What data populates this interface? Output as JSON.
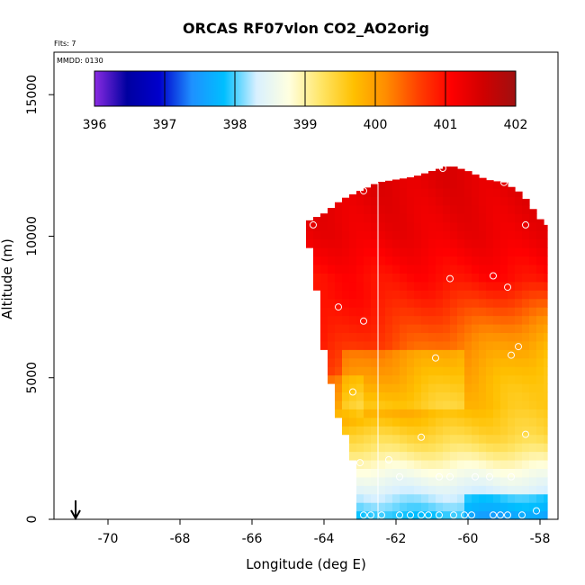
{
  "chart_data": {
    "type": "heatmap",
    "title": "ORCAS RF07vlon CO2_AO2orig",
    "annotations": {
      "flights": "Flts: 7",
      "date": "MMDD: 0130"
    },
    "xlabel": "Longitude (deg E)",
    "ylabel": "Altitude (m)",
    "xlim": [
      -71.5,
      -57.5
    ],
    "ylim": [
      0,
      16500
    ],
    "xticks": [
      -70,
      -68,
      -66,
      -64,
      -62,
      -60,
      -58
    ],
    "yticks": [
      0,
      5000,
      10000,
      15000
    ],
    "colorbar": {
      "range": [
        396,
        402
      ],
      "ticks": [
        396,
        397,
        398,
        399,
        400,
        401,
        402
      ],
      "colors": [
        "#8a2be2",
        "#0000a0",
        "#0000cc",
        "#1e90ff",
        "#00bfff",
        "#d8f0ff",
        "#ffffe0",
        "#ffe566",
        "#ffc000",
        "#ff8c00",
        "#ff4000",
        "#ff0000",
        "#d00000",
        "#a01010"
      ]
    },
    "vertical_line_lon": -62.5,
    "arrow_lon": -70.9,
    "domain": {
      "lon_left": -64.5,
      "lon_right": -57.8,
      "top_profile": [
        [
          -64.5,
          10500
        ],
        [
          -64.0,
          10800
        ],
        [
          -63.5,
          11300
        ],
        [
          -63.0,
          11600
        ],
        [
          -62.5,
          11900
        ],
        [
          -62.0,
          12000
        ],
        [
          -61.5,
          12100
        ],
        [
          -61.0,
          12300
        ],
        [
          -60.5,
          12500
        ],
        [
          -60.0,
          12300
        ],
        [
          -59.5,
          12000
        ],
        [
          -59.0,
          11900
        ],
        [
          -58.5,
          11500
        ],
        [
          -58.0,
          10600
        ],
        [
          -57.8,
          10400
        ]
      ],
      "left_profile": [
        [
          0,
          -63.2
        ],
        [
          1500,
          -63.1
        ],
        [
          2500,
          -63.3
        ],
        [
          4000,
          -63.7
        ],
        [
          6000,
          -64.0
        ],
        [
          8000,
          -64.2
        ],
        [
          9500,
          -64.4
        ],
        [
          10500,
          -64.5
        ]
      ]
    },
    "sample_points": [
      [
        -64.3,
        10400
      ],
      [
        -62.9,
        11600
      ],
      [
        -60.7,
        12400
      ],
      [
        -59.0,
        11900
      ],
      [
        -58.4,
        10400
      ],
      [
        -60.5,
        8500
      ],
      [
        -59.3,
        8600
      ],
      [
        -58.9,
        8200
      ],
      [
        -63.6,
        7500
      ],
      [
        -62.9,
        7000
      ],
      [
        -58.6,
        6100
      ],
      [
        -58.8,
        5800
      ],
      [
        -60.9,
        5700
      ],
      [
        -63.2,
        4500
      ],
      [
        -61.3,
        2900
      ],
      [
        -58.4,
        3000
      ],
      [
        -63.0,
        2000
      ],
      [
        -62.2,
        2100
      ],
      [
        -61.9,
        1500
      ],
      [
        -60.8,
        1500
      ],
      [
        -60.5,
        1500
      ],
      [
        -59.8,
        1500
      ],
      [
        -59.4,
        1500
      ],
      [
        -58.8,
        1500
      ],
      [
        -62.9,
        150
      ],
      [
        -62.7,
        150
      ],
      [
        -62.4,
        150
      ],
      [
        -61.9,
        150
      ],
      [
        -61.6,
        150
      ],
      [
        -61.3,
        150
      ],
      [
        -61.1,
        150
      ],
      [
        -60.8,
        150
      ],
      [
        -60.4,
        150
      ],
      [
        -60.1,
        150
      ],
      [
        -59.9,
        150
      ],
      [
        -59.3,
        150
      ],
      [
        -59.1,
        150
      ],
      [
        -58.9,
        150
      ],
      [
        -58.5,
        150
      ],
      [
        -58.1,
        300
      ]
    ]
  }
}
